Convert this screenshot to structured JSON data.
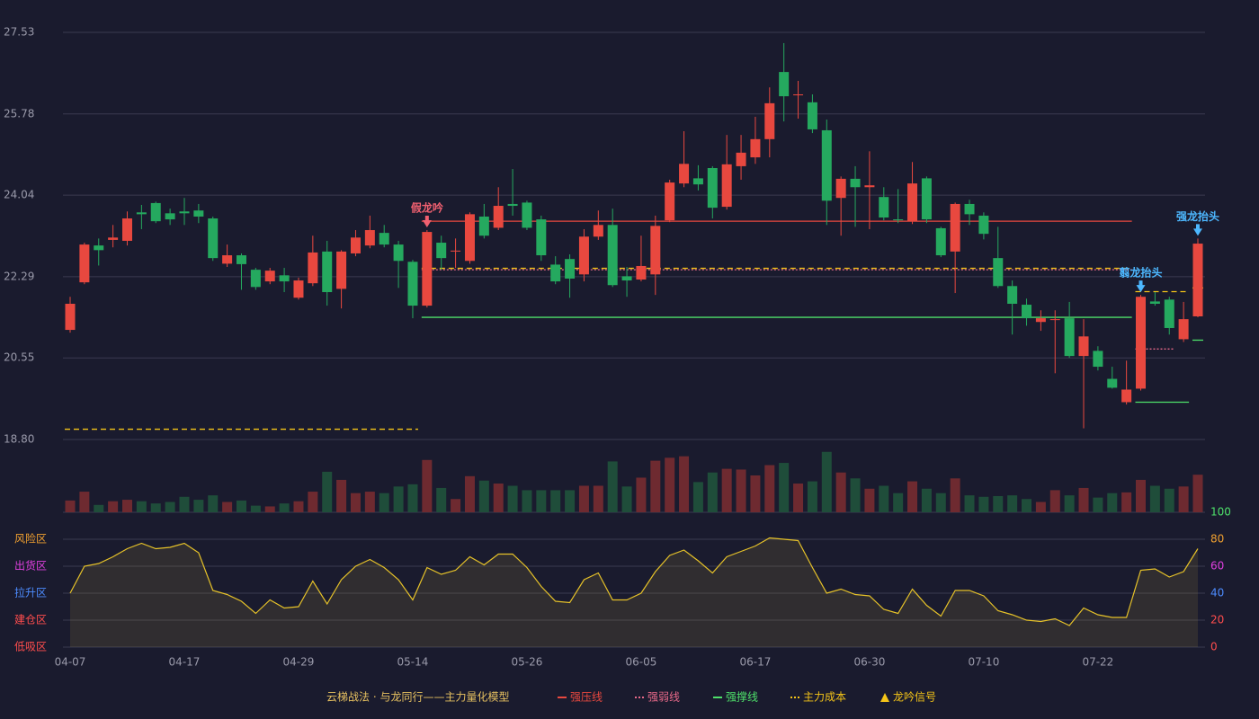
{
  "chart_data": {
    "type": "candlestick",
    "categories": [
      "04-07",
      null,
      null,
      null,
      null,
      null,
      null,
      null,
      "04-17",
      null,
      null,
      null,
      null,
      null,
      null,
      null,
      "04-29",
      null,
      null,
      null,
      null,
      null,
      null,
      null,
      "05-14",
      null,
      null,
      null,
      null,
      null,
      null,
      null,
      "05-26",
      null,
      null,
      null,
      null,
      null,
      null,
      null,
      "06-05",
      null,
      null,
      null,
      null,
      null,
      null,
      null,
      "06-17",
      null,
      null,
      null,
      null,
      null,
      null,
      null,
      "06-30",
      null,
      null,
      null,
      null,
      null,
      null,
      null,
      "07-10",
      null,
      null,
      null,
      null,
      null,
      null,
      null,
      "07-22",
      null,
      null,
      null,
      null,
      null,
      null,
      null
    ],
    "open": [
      21.15,
      22.17,
      22.96,
      23.08,
      23.06,
      23.67,
      23.87,
      23.65,
      23.69,
      23.71,
      23.54,
      22.57,
      22.75,
      22.44,
      22.19,
      22.32,
      21.84,
      22.15,
      22.83,
      22.03,
      22.79,
      22.96,
      23.23,
      22.98,
      22.61,
      21.67,
      23.02,
      22.83,
      22.63,
      23.58,
      23.34,
      23.85,
      23.88,
      23.52,
      22.55,
      22.67,
      22.34,
      23.15,
      23.4,
      22.3,
      22.23,
      22.34,
      23.5,
      24.29,
      24.4,
      24.62,
      23.79,
      24.66,
      24.85,
      25.24,
      26.68,
      26.18,
      26.03,
      25.43,
      23.98,
      24.39,
      24.21,
      24.0,
      23.52,
      23.48,
      24.4,
      23.33,
      22.83,
      23.85,
      23.6,
      22.69,
      22.09,
      21.69,
      21.32,
      21.37,
      21.4,
      20.59,
      20.7,
      20.1,
      19.6,
      19.89,
      21.76,
      21.8,
      20.95,
      21.44
    ],
    "high": [
      21.86,
      23.02,
      23.11,
      23.4,
      23.69,
      23.83,
      23.9,
      23.75,
      23.98,
      23.85,
      23.58,
      22.98,
      22.79,
      22.48,
      22.48,
      22.48,
      22.27,
      23.17,
      23.06,
      22.86,
      23.29,
      23.6,
      23.4,
      23.06,
      22.65,
      23.29,
      23.17,
      23.11,
      23.67,
      23.85,
      24.21,
      24.6,
      23.92,
      23.6,
      22.73,
      22.77,
      23.31,
      23.71,
      23.75,
      22.5,
      23.17,
      23.6,
      24.37,
      25.41,
      24.68,
      24.66,
      25.33,
      25.33,
      25.72,
      26.35,
      27.3,
      26.49,
      26.2,
      25.66,
      24.44,
      24.66,
      24.98,
      24.21,
      24.17,
      24.75,
      24.44,
      23.36,
      23.88,
      23.94,
      23.67,
      23.36,
      22.21,
      21.82,
      21.57,
      21.57,
      21.75,
      21.38,
      20.8,
      20.36,
      20.49,
      21.9,
      21.96,
      21.86,
      21.75,
      23.11
    ],
    "low": [
      21.09,
      22.13,
      22.53,
      22.92,
      22.96,
      23.31,
      23.44,
      23.4,
      23.4,
      23.44,
      22.63,
      22.5,
      22.01,
      22.01,
      22.13,
      21.96,
      21.8,
      22.09,
      21.67,
      21.61,
      22.73,
      22.9,
      22.92,
      22.05,
      21.4,
      21.63,
      22.44,
      22.48,
      22.57,
      23.11,
      23.29,
      23.6,
      23.29,
      22.63,
      22.13,
      21.84,
      22.19,
      23.08,
      22.07,
      21.86,
      22.19,
      21.9,
      23.46,
      24.21,
      24.14,
      23.54,
      23.73,
      24.37,
      24.71,
      24.85,
      25.62,
      25.68,
      25.37,
      23.4,
      23.17,
      23.36,
      23.31,
      23.5,
      23.44,
      23.42,
      23.44,
      22.71,
      21.94,
      23.4,
      23.09,
      22.05,
      21.05,
      21.24,
      21.13,
      20.22,
      20.55,
      19.04,
      20.28,
      19.89,
      19.55,
      19.85,
      21.67,
      21.05,
      20.89,
      21.42
    ],
    "close": [
      21.71,
      22.98,
      22.86,
      23.13,
      23.54,
      23.63,
      23.48,
      23.52,
      23.65,
      23.58,
      22.69,
      22.75,
      22.56,
      22.07,
      22.42,
      22.19,
      22.21,
      22.81,
      21.96,
      22.83,
      23.13,
      23.29,
      22.98,
      22.63,
      21.67,
      23.25,
      22.69,
      22.85,
      23.63,
      23.17,
      23.81,
      23.81,
      23.34,
      22.75,
      22.19,
      22.25,
      23.15,
      23.4,
      22.11,
      22.21,
      22.52,
      23.38,
      24.31,
      24.71,
      24.27,
      23.77,
      24.7,
      24.95,
      25.24,
      26.01,
      26.16,
      26.2,
      25.45,
      23.92,
      24.39,
      24.21,
      24.25,
      23.56,
      23.5,
      24.29,
      23.52,
      22.75,
      23.85,
      23.63,
      23.21,
      22.09,
      21.71,
      21.4,
      21.4,
      21.38,
      20.59,
      21.01,
      20.36,
      19.91,
      19.87,
      21.86,
      21.71,
      21.19,
      21.38,
      23.0
    ],
    "up_color": "#e8483f",
    "down_color": "#25a95f",
    "ylim": [
      18.8,
      27.53
    ],
    "yticks": [
      {
        "value": 18.8,
        "label": "18.80"
      },
      20.55,
      22.29,
      24.04,
      25.78,
      27.53
    ],
    "volume": {
      "ylim": [
        0,
        100
      ],
      "up_color": "#6e2a30",
      "down_color": "#1f4d3a",
      "values": [
        16,
        28,
        10,
        15,
        17,
        15,
        12,
        14,
        21,
        17,
        23,
        14,
        16,
        9,
        8,
        12,
        15,
        28,
        55,
        44,
        26,
        28,
        26,
        35,
        38,
        71,
        33,
        18,
        49,
        43,
        39,
        36,
        30,
        30,
        30,
        30,
        36,
        36,
        69,
        35,
        47,
        70,
        74,
        76,
        41,
        54,
        59,
        58,
        50,
        64,
        67,
        39,
        42,
        82,
        54,
        46,
        32,
        36,
        26,
        42,
        32,
        26,
        46,
        23,
        21,
        22,
        23,
        18,
        14,
        30,
        23,
        33,
        20,
        26,
        27,
        44,
        36,
        32,
        35,
        51
      ]
    },
    "indicator": {
      "ylim": [
        0,
        100
      ],
      "color": "#e6c229",
      "yticks": [
        0,
        20,
        40,
        60,
        80,
        100
      ],
      "tick_colors": [
        "#ff4d4d",
        "#ff4d4d",
        "#4d8cff",
        "#e040e0",
        "#f0a030",
        "#4ee06a"
      ],
      "zones": [
        {
          "label": "风险区",
          "color": "#f0a030"
        },
        {
          "label": "出货区",
          "color": "#e040e0"
        },
        {
          "label": "拉升区",
          "color": "#4d8cff"
        },
        {
          "label": "建仓区",
          "color": "#ff4d4d"
        },
        {
          "label": "低吸区",
          "color": "#ff4d4d"
        }
      ],
      "values": [
        40,
        60,
        62,
        67,
        73,
        77,
        73,
        74,
        77,
        70,
        42,
        39,
        34,
        25,
        35,
        29,
        30,
        49,
        32,
        50,
        60,
        65,
        59,
        50,
        35,
        59,
        54,
        57,
        67,
        61,
        69,
        69,
        59,
        45,
        34,
        33,
        50,
        55,
        35,
        35,
        40,
        56,
        68,
        72,
        64,
        55,
        67,
        71,
        75,
        81,
        80,
        79,
        59,
        40,
        43,
        39,
        38,
        28,
        25,
        43,
        31,
        23,
        42,
        42,
        38,
        27,
        24,
        20,
        19,
        21,
        16,
        29,
        24,
        22,
        22,
        57,
        58,
        52,
        56,
        73
      ]
    },
    "overlays": [
      {
        "name": "强压线",
        "color": "#e8483f",
        "style": "solid",
        "segments": [
          {
            "start": 25,
            "end": 74,
            "value": 23.48
          }
        ]
      },
      {
        "name": "强弱线",
        "color": "#e86a8a",
        "style": "dotted",
        "segments": [
          {
            "start": 25,
            "end": 74,
            "value": 22.44
          },
          {
            "start": 75,
            "end": 77,
            "value": 20.74
          }
        ]
      },
      {
        "name": "强撑线",
        "color": "#4ee06a",
        "style": "solid",
        "segments": [
          {
            "start": 25,
            "end": 74,
            "value": 21.42
          },
          {
            "start": 75,
            "end": 78,
            "value": 19.6
          },
          {
            "start": 79,
            "end": 79,
            "value": 20.93
          }
        ]
      },
      {
        "name": "主力成本",
        "color": "#f5c518",
        "style": "dashed",
        "segments": [
          {
            "start": 0,
            "end": 24,
            "value": 19.02
          },
          {
            "start": 25,
            "end": 74,
            "value": 22.47
          },
          {
            "start": 75,
            "end": 78,
            "value": 21.97
          },
          {
            "start": 79,
            "end": 79,
            "value": 22.05
          }
        ]
      }
    ],
    "signal": {
      "name": "龙吟信号",
      "color": "#f5c518"
    },
    "annotations": [
      {
        "text": "假龙吟",
        "index": 25,
        "color": "#f06070"
      },
      {
        "text": "翦龙抬头",
        "index": 75,
        "color": "#4db8ff"
      },
      {
        "text": "强龙抬头",
        "index": 79,
        "color": "#4db8ff"
      }
    ],
    "legend_title": "云梯战法 · 与龙同行——主力量化模型"
  }
}
